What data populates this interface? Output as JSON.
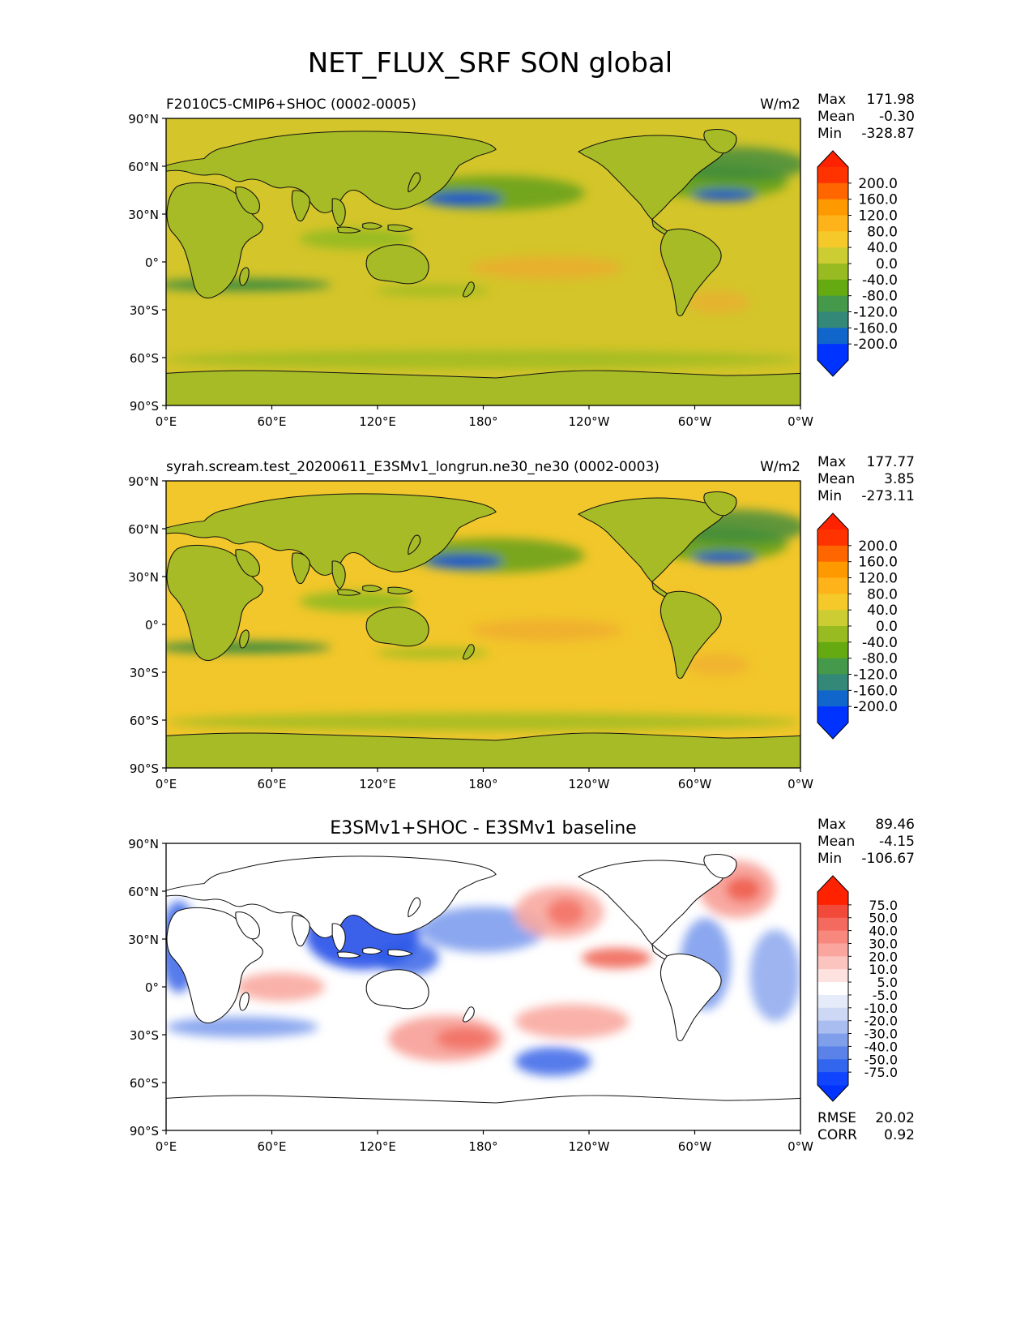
{
  "figure": {
    "title": "NET_FLUX_SRF SON global"
  },
  "panels": [
    {
      "title_left": "F2010C5-CMIP6+SHOC (0002-0005)",
      "units": "W/m2",
      "stats": [
        {
          "label": "Max",
          "value": "171.98"
        },
        {
          "label": "Mean",
          "value": "-0.30"
        },
        {
          "label": "Min",
          "value": "-328.87"
        }
      ],
      "colorbar": {
        "labels": [
          "200.0",
          "160.0",
          "120.0",
          "80.0",
          "40.0",
          "0.0",
          "-40.0",
          "-80.0",
          "-120.0",
          "-160.0",
          "-200.0"
        ],
        "colors": [
          "#ff3300",
          "#ff6600",
          "#ff9900",
          "#ffb31a",
          "#f5c92a",
          "#cccc33",
          "#99bb22",
          "#66aa11",
          "#44994a",
          "#338877",
          "#1166cc",
          "#0033ff"
        ],
        "tri_top": "#ff2200",
        "tri_bottom": "#0033ff"
      },
      "field_palette": {
        "land": "#a6bb26",
        "ocean_base": "#d4c52a",
        "warm": "#f5c92a",
        "warm2": "#f0a830",
        "cool": "#99bb22",
        "cool2": "#5a9e1a",
        "cool3": "#3b8a3e",
        "cold": "#1a55cc",
        "cold2": "#0a44ee"
      }
    },
    {
      "title_left": "syrah.scream.test_20200611_E3SMv1_longrun.ne30_ne30 (0002-0003)",
      "units": "W/m2",
      "stats": [
        {
          "label": "Max",
          "value": "177.77"
        },
        {
          "label": "Mean",
          "value": "3.85"
        },
        {
          "label": "Min",
          "value": "-273.11"
        }
      ],
      "colorbar": {
        "labels": [
          "200.0",
          "160.0",
          "120.0",
          "80.0",
          "40.0",
          "0.0",
          "-40.0",
          "-80.0",
          "-120.0",
          "-160.0",
          "-200.0"
        ],
        "colors": [
          "#ff3300",
          "#ff6600",
          "#ff9900",
          "#ffb31a",
          "#f5c92a",
          "#cccc33",
          "#99bb22",
          "#66aa11",
          "#44994a",
          "#338877",
          "#1166cc",
          "#0033ff"
        ],
        "tri_top": "#ff2200",
        "tri_bottom": "#0033ff"
      },
      "field_palette": {
        "land": "#a6bb26",
        "ocean_base": "#f2c72b",
        "warm": "#f5c92a",
        "warm2": "#f0a830",
        "cool": "#99bb22",
        "cool2": "#5a9e1a",
        "cool3": "#3b8a3e",
        "cold": "#1a55cc",
        "cold2": "#0a44ee"
      }
    },
    {
      "title_center": "E3SMv1+SHOC - E3SMv1 baseline",
      "stats": [
        {
          "label": "Max",
          "value": "89.46"
        },
        {
          "label": "Mean",
          "value": "-4.15"
        },
        {
          "label": "Min",
          "value": "-106.67"
        }
      ],
      "colorbar": {
        "labels": [
          "75.0",
          "50.0",
          "40.0",
          "30.0",
          "20.0",
          "10.0",
          "5.0",
          "-5.0",
          "-10.0",
          "-20.0",
          "-30.0",
          "-40.0",
          "-50.0",
          "-75.0"
        ],
        "colors": [
          "#ff2200",
          "#f24a3a",
          "#f56a5e",
          "#f8887e",
          "#faa69f",
          "#fcc4bf",
          "#fde2df",
          "#ffffff",
          "#e6ebfa",
          "#cdd8f5",
          "#a9bdf0",
          "#7f9fea",
          "#5a82e8",
          "#3366ee",
          "#1144ff"
        ],
        "tri_top": "#ff2200",
        "tri_bottom": "#0033ff"
      },
      "metrics": [
        {
          "label": "RMSE",
          "value": "20.02"
        },
        {
          "label": "CORR",
          "value": "0.92"
        }
      ],
      "field_palette": {
        "land": "#ffffff",
        "ocean_base": "#ffffff",
        "warm": "#f8a8a0",
        "warm2": "#ee5544",
        "cool": "#b9c9f2",
        "cool2": "#5a82e8",
        "cool3": "#2b5ae6",
        "cold": "#1a44e8",
        "cold2": "#0a33ee"
      }
    }
  ],
  "axes": {
    "y_ticks": [
      "90°N",
      "60°N",
      "30°N",
      "0°",
      "30°S",
      "60°S",
      "90°S"
    ],
    "x_ticks": [
      "0°E",
      "60°E",
      "120°E",
      "180°",
      "120°W",
      "60°W",
      "0°W"
    ]
  }
}
